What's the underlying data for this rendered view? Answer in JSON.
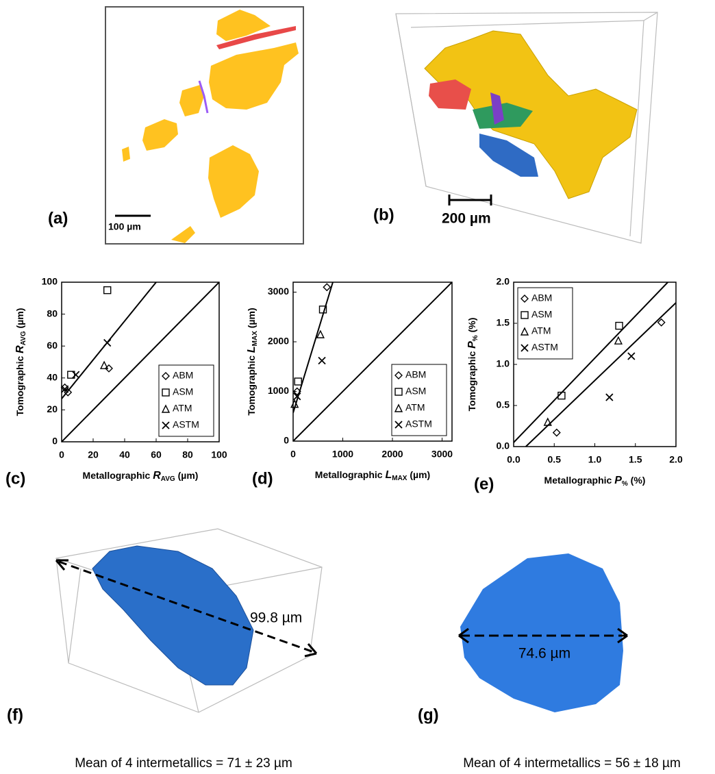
{
  "chart_data": [
    {
      "type": "scatter",
      "panel_label": "(c)",
      "xlabel": {
        "pre": "Metallographic ",
        "var": "R",
        "sub": "AVG",
        "post": " (µm)"
      },
      "ylabel": {
        "pre": "Tomographic ",
        "var": "R",
        "sub": "AVG",
        "post": " (µm)"
      },
      "xlim": [
        0,
        100
      ],
      "ylim": [
        0,
        100
      ],
      "xticks": [
        0,
        20,
        40,
        60,
        80,
        100
      ],
      "yticks": [
        0,
        20,
        40,
        60,
        80,
        100
      ],
      "legend": "lower right",
      "series": [
        {
          "name": "ABM",
          "marker": "diamond",
          "color": "#000000",
          "x": [
            2,
            4,
            30
          ],
          "values": [
            34,
            31,
            46
          ]
        },
        {
          "name": "ASM",
          "marker": "square",
          "color": "#000000",
          "x": [
            6,
            29
          ],
          "values": [
            42,
            95
          ]
        },
        {
          "name": "ATM",
          "marker": "triangle",
          "color": "#000000",
          "x": [
            27
          ],
          "values": [
            48
          ]
        },
        {
          "name": "ASTM",
          "marker": "x",
          "color": "#000000",
          "x": [
            2,
            9,
            29
          ],
          "values": [
            33,
            42,
            62
          ]
        }
      ],
      "lines": [
        {
          "x": [
            0,
            100
          ],
          "values": [
            0,
            100
          ]
        },
        {
          "x": [
            0,
            60
          ],
          "values": [
            27,
            100
          ]
        }
      ]
    },
    {
      "type": "scatter",
      "panel_label": "(d)",
      "xlabel": {
        "pre": "Metallographic ",
        "var": "L",
        "sub": "MAX",
        "post": " (µm)"
      },
      "ylabel": {
        "pre": "Tomographic ",
        "var": "L",
        "sub": "MAX",
        "post": " (µm)"
      },
      "xlim": [
        0,
        3200
      ],
      "ylim": [
        0,
        3200
      ],
      "xticks": [
        0,
        1000,
        2000,
        3000
      ],
      "yticks": [
        0,
        1000,
        2000,
        3000
      ],
      "legend": "lower right",
      "series": [
        {
          "name": "ABM",
          "marker": "diamond",
          "color": "#000000",
          "x": [
            680,
            80
          ],
          "values": [
            3100,
            1000
          ]
        },
        {
          "name": "ASM",
          "marker": "square",
          "color": "#000000",
          "x": [
            600,
            100
          ],
          "values": [
            2650,
            1200
          ]
        },
        {
          "name": "ATM",
          "marker": "triangle",
          "color": "#000000",
          "x": [
            550,
            30
          ],
          "values": [
            2150,
            750
          ]
        },
        {
          "name": "ASTM",
          "marker": "x",
          "color": "#000000",
          "x": [
            580,
            80
          ],
          "values": [
            1620,
            900
          ]
        }
      ],
      "lines": [
        {
          "x": [
            0,
            3200
          ],
          "values": [
            0,
            3200
          ]
        },
        {
          "x": [
            0,
            800
          ],
          "values": [
            570,
            3200
          ]
        }
      ]
    },
    {
      "type": "scatter",
      "panel_label": "(e)",
      "xlabel": {
        "pre": "Metallographic ",
        "var": "P",
        "sub": "%",
        "post": " (%)"
      },
      "ylabel": {
        "pre": "Tomographic ",
        "var": "P",
        "sub": "%",
        "post": " (%)"
      },
      "xlim": [
        0,
        2
      ],
      "ylim": [
        0,
        2
      ],
      "xticks": [
        {
          "value": 0,
          "label": "0.0"
        },
        0.5,
        {
          "value": 1,
          "label": "1.0"
        },
        1.5,
        {
          "value": 2,
          "label": "2.0"
        }
      ],
      "yticks": [
        {
          "value": 0,
          "label": "0.0"
        },
        0.5,
        {
          "value": 1,
          "label": "1.0"
        },
        1.5,
        {
          "value": 2,
          "label": "2.0"
        }
      ],
      "legend": "upper left",
      "series": [
        {
          "name": "ABM",
          "marker": "diamond",
          "color": "#000000",
          "x": [
            0.53,
            1.82
          ],
          "values": [
            0.17,
            1.51
          ]
        },
        {
          "name": "ASM",
          "marker": "square",
          "color": "#000000",
          "x": [
            0.59,
            1.3
          ],
          "values": [
            0.62,
            1.47
          ]
        },
        {
          "name": "ATM",
          "marker": "triangle",
          "color": "#000000",
          "x": [
            0.42,
            1.29
          ],
          "values": [
            0.3,
            1.29
          ]
        },
        {
          "name": "ASTM",
          "marker": "x",
          "color": "#000000",
          "x": [
            1.18,
            1.45
          ],
          "values": [
            0.6,
            1.1
          ]
        }
      ],
      "lines": [
        {
          "x": [
            0,
            1.9
          ],
          "values": [
            0.05,
            2
          ]
        },
        {
          "x": [
            0.15,
            2
          ],
          "values": [
            0,
            1.75
          ]
        }
      ]
    }
  ],
  "panels": {
    "a": {
      "label": "(a)",
      "scale_bar": "100 µm"
    },
    "b": {
      "label": "(b)",
      "scale_bar": "200 µm"
    },
    "f": {
      "label": "(f)",
      "measure": "99.8 µm",
      "caption": "Mean of 4 intermetallics = 71 ± 23 µm"
    },
    "g": {
      "label": "(g)",
      "measure": "74.6 µm",
      "caption": "Mean of 4 intermetallics = 56 ± 18 µm"
    }
  }
}
